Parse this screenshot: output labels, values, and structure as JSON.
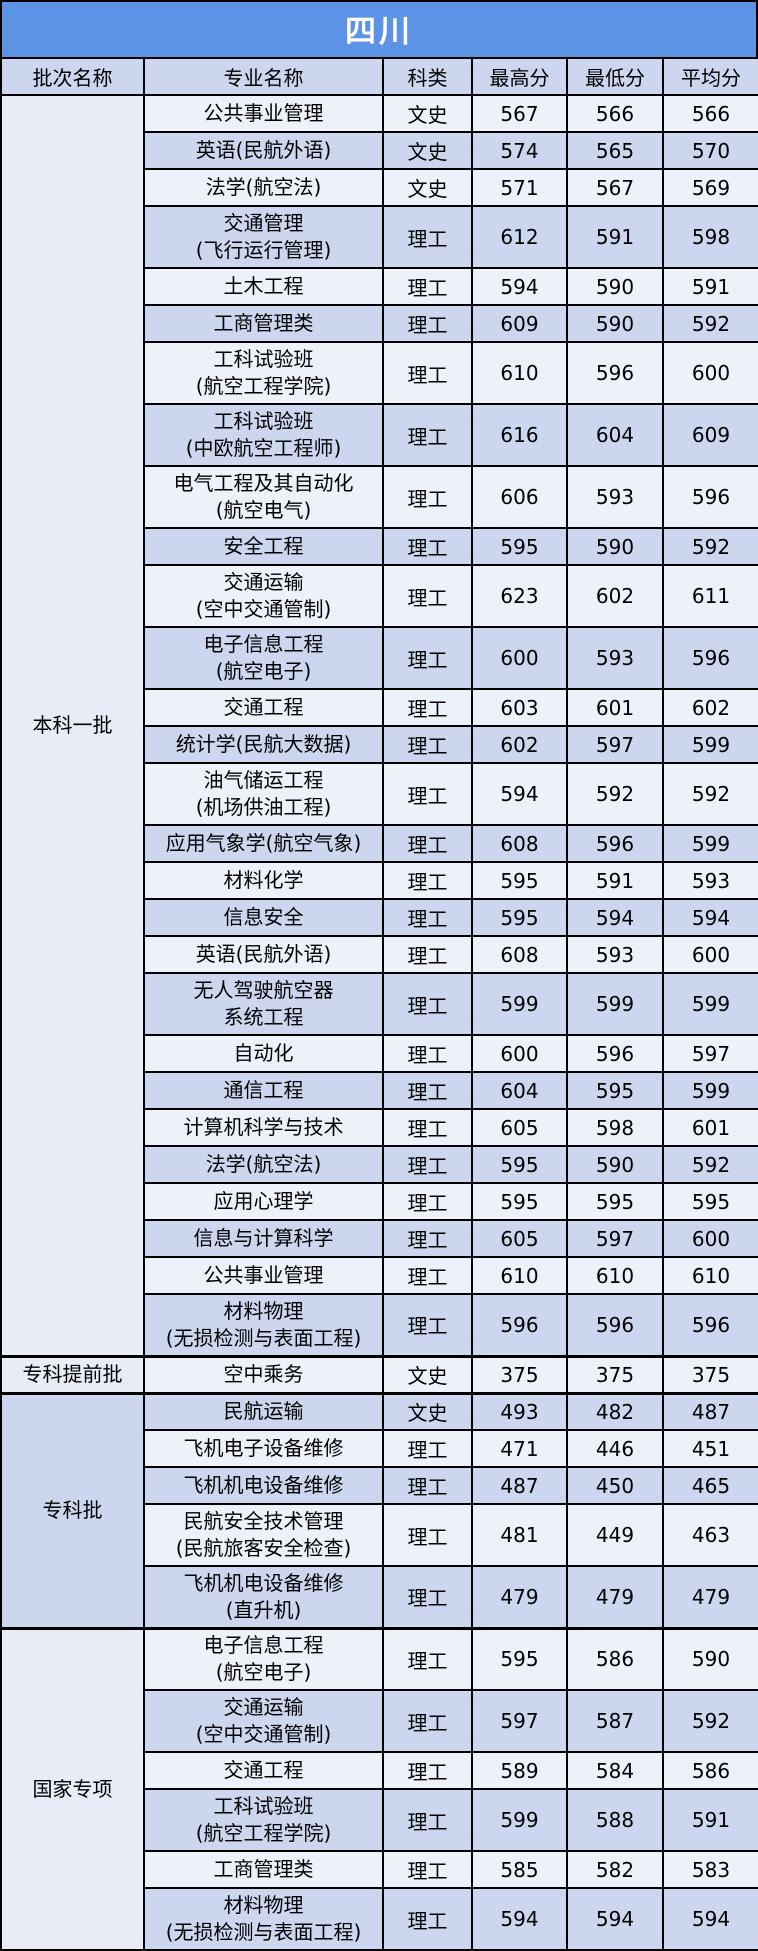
{
  "title": "四川",
  "columns": [
    "批次名称",
    "专业名称",
    "科类",
    "最高分",
    "最低分",
    "平均分"
  ],
  "colors": {
    "title_bg": "#5C93E4",
    "title_text": "#FFFFFF",
    "row_dark": "#CCD6EE",
    "row_light": "#EDF1FA",
    "batch_light": "#E8ECF7",
    "border": "#000000"
  },
  "sections": [
    {
      "batch": "本科一批",
      "shade": "light",
      "rows": [
        {
          "major": "公共事业管理",
          "category": "文史",
          "max": 567,
          "min": 566,
          "avg": 566
        },
        {
          "major": "英语(民航外语)",
          "category": "文史",
          "max": 574,
          "min": 565,
          "avg": 570
        },
        {
          "major": "法学(航空法)",
          "category": "文史",
          "max": 571,
          "min": 567,
          "avg": 569
        },
        {
          "major": "交通管理\n(飞行运行管理)",
          "category": "理工",
          "max": 612,
          "min": 591,
          "avg": 598
        },
        {
          "major": "土木工程",
          "category": "理工",
          "max": 594,
          "min": 590,
          "avg": 591
        },
        {
          "major": "工商管理类",
          "category": "理工",
          "max": 609,
          "min": 590,
          "avg": 592
        },
        {
          "major": "工科试验班\n(航空工程学院)",
          "category": "理工",
          "max": 610,
          "min": 596,
          "avg": 600
        },
        {
          "major": "工科试验班\n(中欧航空工程师)",
          "category": "理工",
          "max": 616,
          "min": 604,
          "avg": 609
        },
        {
          "major": "电气工程及其自动化\n(航空电气)",
          "category": "理工",
          "max": 606,
          "min": 593,
          "avg": 596
        },
        {
          "major": "安全工程",
          "category": "理工",
          "max": 595,
          "min": 590,
          "avg": 592
        },
        {
          "major": "交通运输\n(空中交通管制)",
          "category": "理工",
          "max": 623,
          "min": 602,
          "avg": 611
        },
        {
          "major": "电子信息工程\n(航空电子)",
          "category": "理工",
          "max": 600,
          "min": 593,
          "avg": 596
        },
        {
          "major": "交通工程",
          "category": "理工",
          "max": 603,
          "min": 601,
          "avg": 602
        },
        {
          "major": "统计学(民航大数据)",
          "category": "理工",
          "max": 602,
          "min": 597,
          "avg": 599
        },
        {
          "major": "油气储运工程\n(机场供油工程)",
          "category": "理工",
          "max": 594,
          "min": 592,
          "avg": 592
        },
        {
          "major": "应用气象学(航空气象)",
          "category": "理工",
          "max": 608,
          "min": 596,
          "avg": 599
        },
        {
          "major": "材料化学",
          "category": "理工",
          "max": 595,
          "min": 591,
          "avg": 593
        },
        {
          "major": "信息安全",
          "category": "理工",
          "max": 595,
          "min": 594,
          "avg": 594
        },
        {
          "major": "英语(民航外语)",
          "category": "理工",
          "max": 608,
          "min": 593,
          "avg": 600
        },
        {
          "major": "无人驾驶航空器\n系统工程",
          "category": "理工",
          "max": 599,
          "min": 599,
          "avg": 599
        },
        {
          "major": "自动化",
          "category": "理工",
          "max": 600,
          "min": 596,
          "avg": 597
        },
        {
          "major": "通信工程",
          "category": "理工",
          "max": 604,
          "min": 595,
          "avg": 599
        },
        {
          "major": "计算机科学与技术",
          "category": "理工",
          "max": 605,
          "min": 598,
          "avg": 601
        },
        {
          "major": "法学(航空法)",
          "category": "理工",
          "max": 595,
          "min": 590,
          "avg": 592
        },
        {
          "major": "应用心理学",
          "category": "理工",
          "max": 595,
          "min": 595,
          "avg": 595
        },
        {
          "major": "信息与计算科学",
          "category": "理工",
          "max": 605,
          "min": 597,
          "avg": 600
        },
        {
          "major": "公共事业管理",
          "category": "理工",
          "max": 610,
          "min": 610,
          "avg": 610
        },
        {
          "major": "材料物理\n(无损检测与表面工程)",
          "category": "理工",
          "max": 596,
          "min": 596,
          "avg": 596
        }
      ]
    },
    {
      "batch": "专科提前批",
      "shade": "light",
      "rows": [
        {
          "major": "空中乘务",
          "category": "文史",
          "max": 375,
          "min": 375,
          "avg": 375
        }
      ]
    },
    {
      "batch": "专科批",
      "shade": "dark",
      "rows": [
        {
          "major": "民航运输",
          "category": "文史",
          "max": 493,
          "min": 482,
          "avg": 487
        },
        {
          "major": "飞机电子设备维修",
          "category": "理工",
          "max": 471,
          "min": 446,
          "avg": 451
        },
        {
          "major": "飞机机电设备维修",
          "category": "理工",
          "max": 487,
          "min": 450,
          "avg": 465
        },
        {
          "major": "民航安全技术管理\n(民航旅客安全检查)",
          "category": "理工",
          "max": 481,
          "min": 449,
          "avg": 463
        },
        {
          "major": "飞机机电设备维修\n(直升机)",
          "category": "理工",
          "max": 479,
          "min": 479,
          "avg": 479
        }
      ]
    },
    {
      "batch": "国家专项",
      "shade": "light",
      "rows": [
        {
          "major": "电子信息工程\n(航空电子)",
          "category": "理工",
          "max": 595,
          "min": 586,
          "avg": 590
        },
        {
          "major": "交通运输\n(空中交通管制)",
          "category": "理工",
          "max": 597,
          "min": 587,
          "avg": 592
        },
        {
          "major": "交通工程",
          "category": "理工",
          "max": 589,
          "min": 584,
          "avg": 586
        },
        {
          "major": "工科试验班\n(航空工程学院)",
          "category": "理工",
          "max": 599,
          "min": 588,
          "avg": 591
        },
        {
          "major": "工商管理类",
          "category": "理工",
          "max": 585,
          "min": 582,
          "avg": 583
        },
        {
          "major": "材料物理\n(无损检测与表面工程)",
          "category": "理工",
          "max": 594,
          "min": 594,
          "avg": 594
        }
      ]
    }
  ]
}
